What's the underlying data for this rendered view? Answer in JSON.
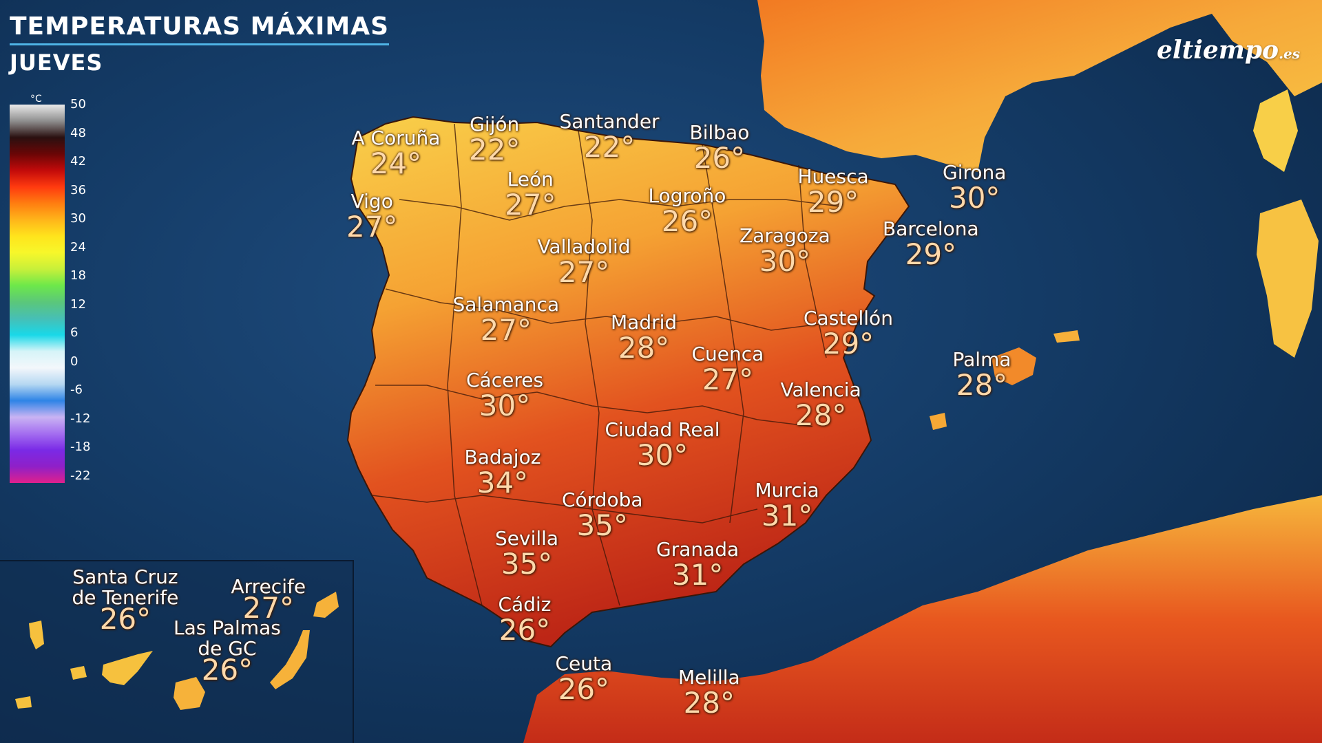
{
  "title": "TEMPERATURAS MÁXIMAS",
  "subtitle": "JUEVES",
  "brand": {
    "name": "eltiempo",
    "suffix": ".es"
  },
  "legend": {
    "unit": "°C",
    "ticks": [
      "50",
      "48",
      "42",
      "36",
      "30",
      "24",
      "18",
      "12",
      "6",
      "0",
      "-6",
      "-12",
      "-18",
      "-22"
    ]
  },
  "cities": [
    {
      "name": "A Coruña",
      "temp": "24°"
    },
    {
      "name": "Gijón",
      "temp": "22°"
    },
    {
      "name": "Santander",
      "temp": "22°"
    },
    {
      "name": "Bilbao",
      "temp": "26°"
    },
    {
      "name": "Vigo",
      "temp": "27°"
    },
    {
      "name": "León",
      "temp": "27°"
    },
    {
      "name": "Logroño",
      "temp": "26°"
    },
    {
      "name": "Huesca",
      "temp": "29°"
    },
    {
      "name": "Girona",
      "temp": "30°"
    },
    {
      "name": "Barcelona",
      "temp": "29°"
    },
    {
      "name": "Zaragoza",
      "temp": "30°"
    },
    {
      "name": "Valladolid",
      "temp": "27°"
    },
    {
      "name": "Salamanca",
      "temp": "27°"
    },
    {
      "name": "Madrid",
      "temp": "28°"
    },
    {
      "name": "Castellón",
      "temp": "29°"
    },
    {
      "name": "Cuenca",
      "temp": "27°"
    },
    {
      "name": "Palma",
      "temp": "28°"
    },
    {
      "name": "Cáceres",
      "temp": "30°"
    },
    {
      "name": "Valencia",
      "temp": "28°"
    },
    {
      "name": "Ciudad Real",
      "temp": "30°"
    },
    {
      "name": "Badajoz",
      "temp": "34°"
    },
    {
      "name": "Córdoba",
      "temp": "35°"
    },
    {
      "name": "Murcia",
      "temp": "31°"
    },
    {
      "name": "Sevilla",
      "temp": "35°"
    },
    {
      "name": "Granada",
      "temp": "31°"
    },
    {
      "name": "Cádiz",
      "temp": "26°"
    },
    {
      "name": "Ceuta",
      "temp": "26°"
    },
    {
      "name": "Melilla",
      "temp": "28°"
    }
  ],
  "canarias": [
    {
      "name": "Santa Cruz\nde Tenerife",
      "temp": "26°"
    },
    {
      "name": "Arrecife",
      "temp": "27°"
    },
    {
      "name": "Las Palmas\nde GC",
      "temp": "26°"
    }
  ],
  "colors": {
    "sea": "#143b66",
    "hot": "#c62f1b",
    "warm": "#f07a1f",
    "mild": "#f8c43a",
    "cool": "#e9e94a"
  }
}
